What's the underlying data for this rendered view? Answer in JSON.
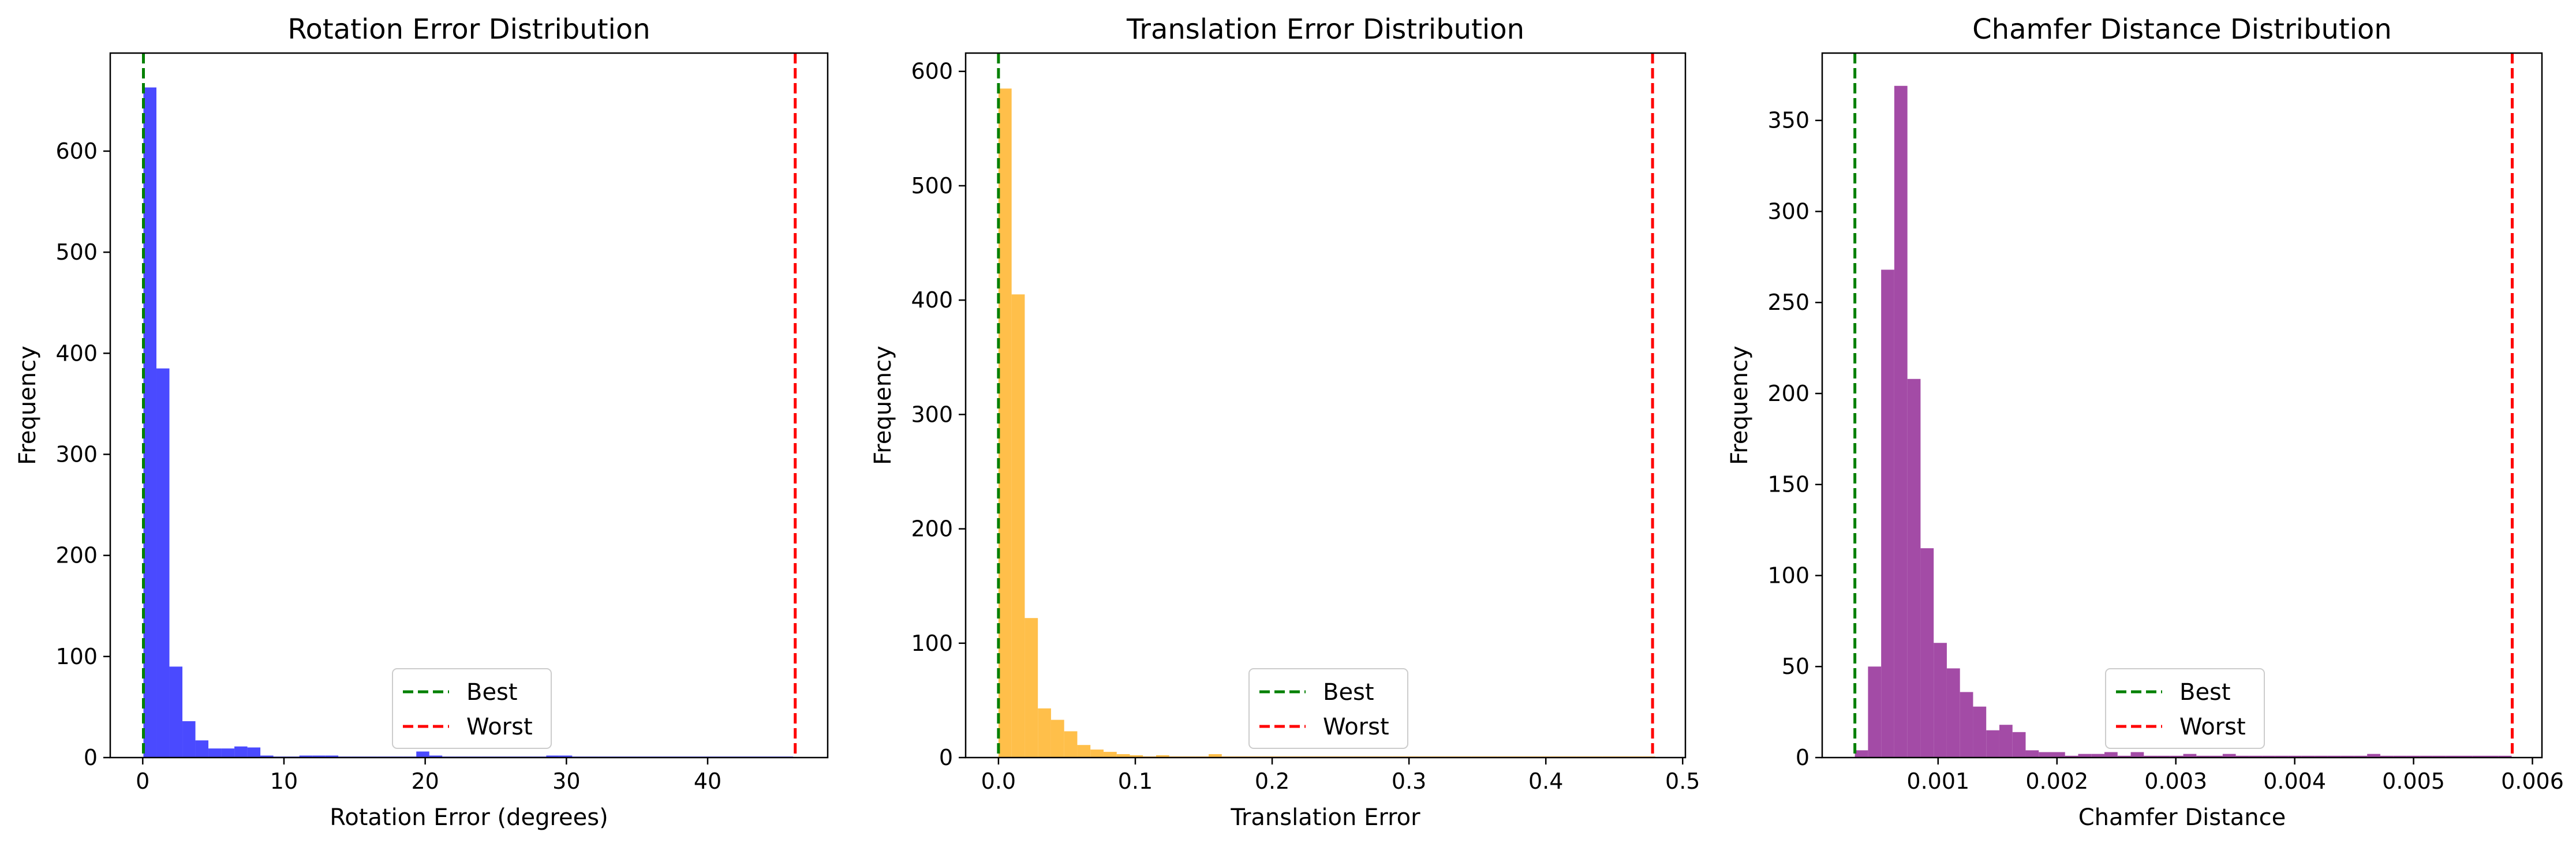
{
  "chart_data": [
    {
      "type": "bar",
      "title": "Rotation Error Distribution",
      "xlabel": "Rotation Error (degrees)",
      "ylabel": "Frequency",
      "xlim": [
        -2.3,
        48.5
      ],
      "ylim": [
        0,
        697
      ],
      "xticks": [
        {
          "value": 0,
          "label": "0"
        },
        {
          "value": 10,
          "label": "10"
        },
        {
          "value": 20,
          "label": "20"
        },
        {
          "value": 30,
          "label": "30"
        },
        {
          "value": 40,
          "label": "40"
        }
      ],
      "yticks": [
        {
          "value": 0,
          "label": "0"
        },
        {
          "value": 100,
          "label": "100"
        },
        {
          "value": 200,
          "label": "200"
        },
        {
          "value": 300,
          "label": "300"
        },
        {
          "value": 400,
          "label": "400"
        },
        {
          "value": 500,
          "label": "500"
        },
        {
          "value": 600,
          "label": "600"
        }
      ],
      "bin_start": 0.05,
      "bin_width": 0.92,
      "counts": [
        663,
        385,
        90,
        36,
        17,
        9,
        9,
        11,
        10,
        2,
        1,
        1,
        2,
        2,
        2,
        1,
        1,
        1,
        1,
        1,
        1,
        6,
        2,
        1,
        1,
        1,
        1,
        1,
        1,
        1,
        1,
        2,
        2,
        1,
        1,
        1,
        1,
        1,
        1,
        1,
        1,
        1,
        1,
        1,
        1,
        1,
        1,
        1,
        1,
        1
      ],
      "bar_color": "#4a4aff",
      "vlines": [
        {
          "name": "Best",
          "x": 0.05,
          "color": "#008000"
        },
        {
          "name": "Worst",
          "x": 46.2,
          "color": "#ff0000"
        }
      ],
      "legend_position": "lower-center"
    },
    {
      "type": "bar",
      "title": "Translation Error Distribution",
      "xlabel": "Translation Error",
      "ylabel": "Frequency",
      "xlim": [
        -0.024,
        0.502
      ],
      "ylim": [
        0,
        616
      ],
      "xticks": [
        {
          "value": 0,
          "label": "0.0"
        },
        {
          "value": 0.1,
          "label": "0.1"
        },
        {
          "value": 0.2,
          "label": "0.2"
        },
        {
          "value": 0.3,
          "label": "0.3"
        },
        {
          "value": 0.4,
          "label": "0.4"
        },
        {
          "value": 0.5,
          "label": "0.5"
        }
      ],
      "yticks": [
        {
          "value": 0,
          "label": "0"
        },
        {
          "value": 100,
          "label": "100"
        },
        {
          "value": 200,
          "label": "200"
        },
        {
          "value": 300,
          "label": "300"
        },
        {
          "value": 400,
          "label": "400"
        },
        {
          "value": 500,
          "label": "500"
        },
        {
          "value": 600,
          "label": "600"
        }
      ],
      "bin_start": 0.0,
      "bin_width": 0.0096,
      "counts": [
        585,
        405,
        122,
        43,
        33,
        23,
        11,
        7,
        5,
        3,
        2,
        1,
        2,
        1,
        1,
        1,
        3,
        1,
        1,
        1,
        1,
        1,
        1,
        1,
        1,
        1,
        1,
        1,
        1,
        1,
        1,
        1,
        1,
        1,
        1,
        1,
        1,
        1,
        1,
        1,
        1,
        1,
        1,
        1,
        1,
        1,
        1,
        1,
        1,
        1
      ],
      "bar_color": "#ffbf4a",
      "vlines": [
        {
          "name": "Best",
          "x": 0.0,
          "color": "#008000"
        },
        {
          "name": "Worst",
          "x": 0.478,
          "color": "#ff0000"
        }
      ],
      "legend_position": "lower-center"
    },
    {
      "type": "bar",
      "title": "Chamfer Distance Distribution",
      "xlabel": "Chamfer Distance",
      "ylabel": "Frequency",
      "xlim": [
        2.5e-05,
        0.00608
      ],
      "ylim": [
        0,
        387
      ],
      "xticks": [
        {
          "value": 0.001,
          "label": "0.001"
        },
        {
          "value": 0.002,
          "label": "0.002"
        },
        {
          "value": 0.003,
          "label": "0.003"
        },
        {
          "value": 0.004,
          "label": "0.004"
        },
        {
          "value": 0.005,
          "label": "0.005"
        },
        {
          "value": 0.006,
          "label": "0.006"
        }
      ],
      "yticks": [
        {
          "value": 0,
          "label": "0"
        },
        {
          "value": 50,
          "label": "50"
        },
        {
          "value": 100,
          "label": "100"
        },
        {
          "value": 150,
          "label": "150"
        },
        {
          "value": 200,
          "label": "200"
        },
        {
          "value": 250,
          "label": "250"
        },
        {
          "value": 300,
          "label": "300"
        },
        {
          "value": 350,
          "label": "350"
        }
      ],
      "bin_start": 0.0003,
      "bin_width": 0.0001105,
      "counts": [
        4,
        50,
        268,
        369,
        208,
        115,
        63,
        49,
        36,
        28,
        15,
        18,
        14,
        4,
        3,
        3,
        1,
        2,
        2,
        3,
        1,
        3,
        1,
        1,
        1,
        2,
        1,
        1,
        2,
        1,
        1,
        1,
        1,
        1,
        1,
        1,
        1,
        1,
        1,
        2,
        1,
        1,
        1,
        1,
        1,
        1,
        1,
        1,
        1,
        1
      ],
      "bar_color": "#a34ba6",
      "vlines": [
        {
          "name": "Best",
          "x": 0.0003,
          "color": "#008000"
        },
        {
          "name": "Worst",
          "x": 0.00583,
          "color": "#ff0000"
        }
      ],
      "legend_position": "lower-center"
    }
  ]
}
